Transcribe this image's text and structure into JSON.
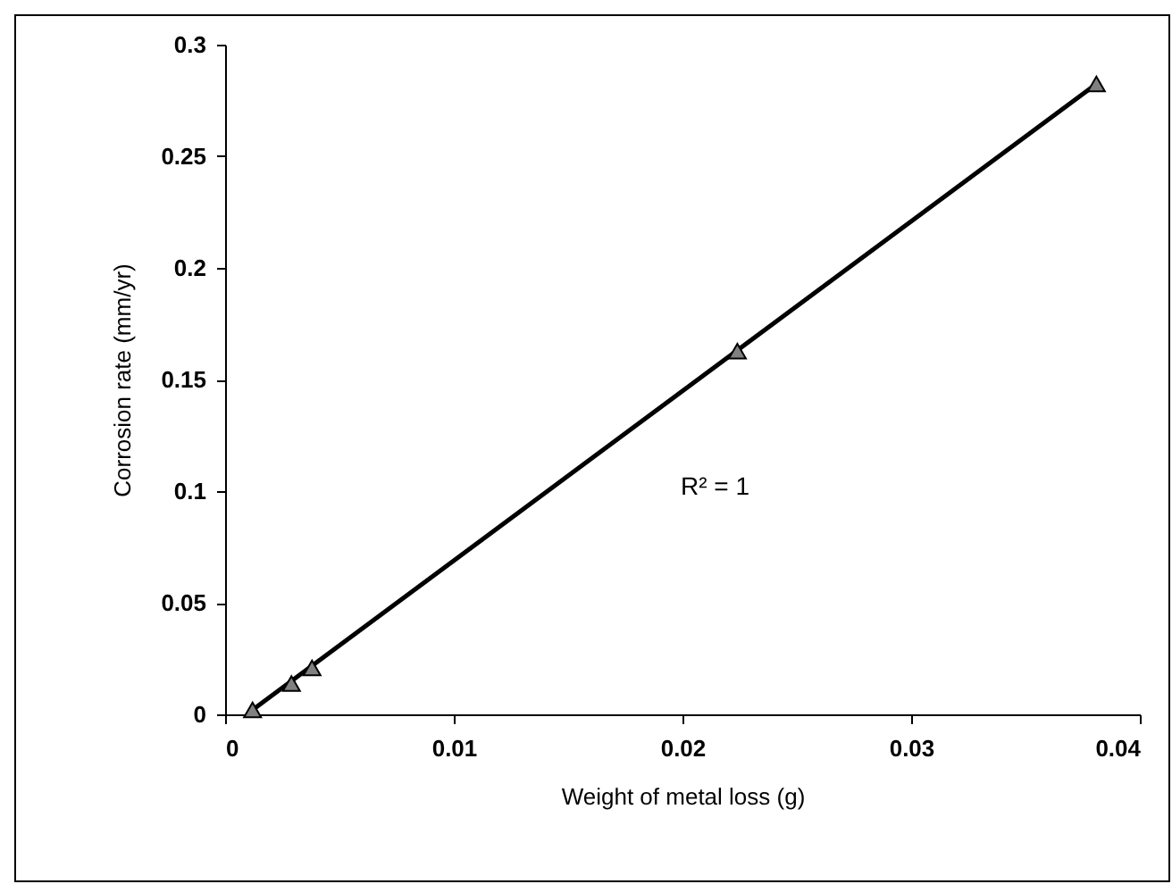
{
  "chart_data": {
    "type": "scatter",
    "xlabel": "Weight of metal loss (g)",
    "ylabel": "Corrosion rate (mm/yr)",
    "annotations": [
      "R² = 1"
    ],
    "xlim": [
      0,
      0.04
    ],
    "xticks": [
      0,
      0.01,
      0.02,
      0.03,
      0.04
    ],
    "ylim": [
      0,
      0.3
    ],
    "yticks": [
      0,
      0.05,
      0.1,
      0.15,
      0.2,
      0.25,
      0.3
    ],
    "grid": false,
    "series": [
      {
        "color": "#808080",
        "marker": "triangle",
        "x": [
          0.0012,
          0.0029,
          0.0038,
          0.0224,
          0.0381
        ],
        "values": [
          0.002,
          0.0138,
          0.0208,
          0.1627,
          0.2824
        ]
      },
      {
        "type": "line",
        "color": "#000000",
        "marker": "none",
        "line_style": "solid",
        "x": [
          0.0012,
          0.0381
        ],
        "values": [
          0.002,
          0.2824
        ]
      }
    ]
  }
}
